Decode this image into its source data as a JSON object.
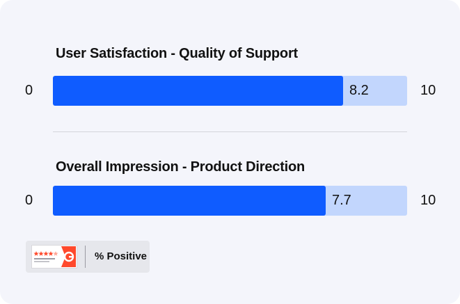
{
  "colors": {
    "background": "#f4f5fb",
    "bar_fill": "#0f5cff",
    "bar_track": "#c2d6fd",
    "g2_brand": "#ff492c"
  },
  "chart_data": {
    "type": "bar",
    "orientation": "horizontal",
    "xlim": [
      0,
      10
    ],
    "grid": false,
    "series": [
      {
        "title": "User Satisfaction - Quality of Support",
        "value": 8.2,
        "value_label": "8.2",
        "min_label": "0",
        "max_label": "10"
      },
      {
        "title": "Overall Impression - Product Direction",
        "value": 7.7,
        "value_label": "7.7",
        "min_label": "0",
        "max_label": "10"
      }
    ]
  },
  "legend": {
    "badge_icon": "g2-badge-icon",
    "label": "% Positive"
  }
}
